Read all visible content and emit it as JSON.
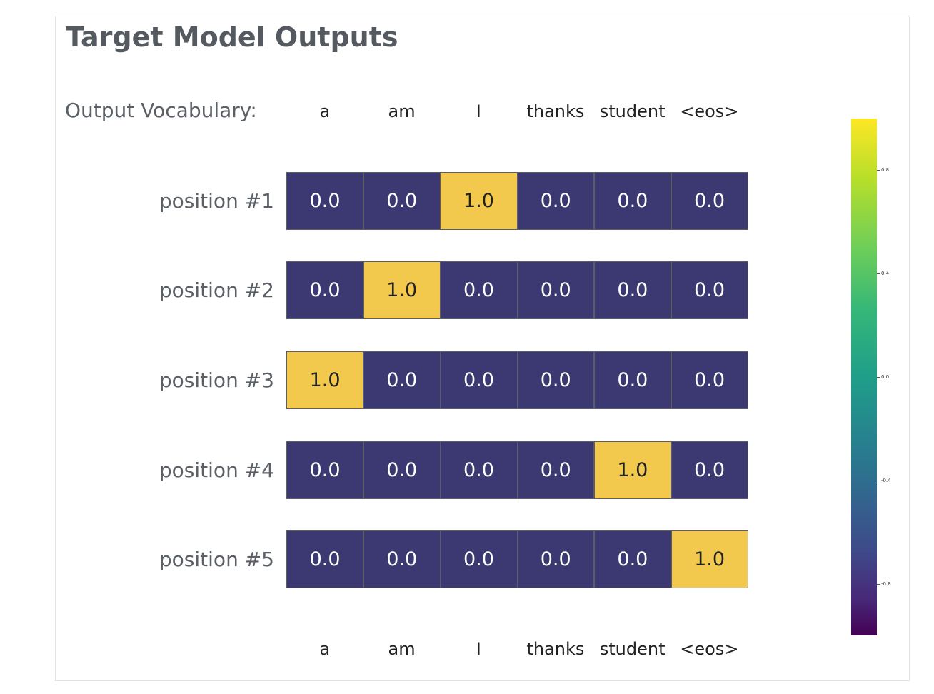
{
  "title": "Target Model Outputs",
  "vocab_label": "Output Vocabulary:",
  "chart_data": {
    "type": "heatmap",
    "columns": [
      "a",
      "am",
      "I",
      "thanks",
      "student",
      "<eos>"
    ],
    "rows": [
      "position #1",
      "position #2",
      "position #3",
      "position #4",
      "position #5"
    ],
    "values": [
      [
        0.0,
        0.0,
        1.0,
        0.0,
        0.0,
        0.0
      ],
      [
        0.0,
        1.0,
        0.0,
        0.0,
        0.0,
        0.0
      ],
      [
        1.0,
        0.0,
        0.0,
        0.0,
        0.0,
        0.0
      ],
      [
        0.0,
        0.0,
        0.0,
        0.0,
        1.0,
        0.0
      ],
      [
        0.0,
        0.0,
        0.0,
        0.0,
        0.0,
        1.0
      ]
    ],
    "cell_labels": [
      [
        "0.0",
        "0.0",
        "1.0",
        "0.0",
        "0.0",
        "0.0"
      ],
      [
        "0.0",
        "1.0",
        "0.0",
        "0.0",
        "0.0",
        "0.0"
      ],
      [
        "1.0",
        "0.0",
        "0.0",
        "0.0",
        "0.0",
        "0.0"
      ],
      [
        "0.0",
        "0.0",
        "0.0",
        "0.0",
        "1.0",
        "0.0"
      ],
      [
        "0.0",
        "0.0",
        "0.0",
        "0.0",
        "0.0",
        "1.0"
      ]
    ],
    "colors": {
      "low": "#3c3972",
      "high": "#f2c94c",
      "low_text": "#ffffff",
      "high_text": "#222222"
    },
    "colorbar": {
      "range": [
        -1.0,
        1.0
      ],
      "ticks": [
        0.8,
        0.4,
        0.0,
        -0.4,
        -0.8
      ],
      "tick_labels": [
        "0.8",
        "0.4",
        "0.0",
        "-0.4",
        "-0.8"
      ],
      "colormap": "viridis"
    },
    "column_labels_top": true,
    "column_labels_bottom": true
  }
}
